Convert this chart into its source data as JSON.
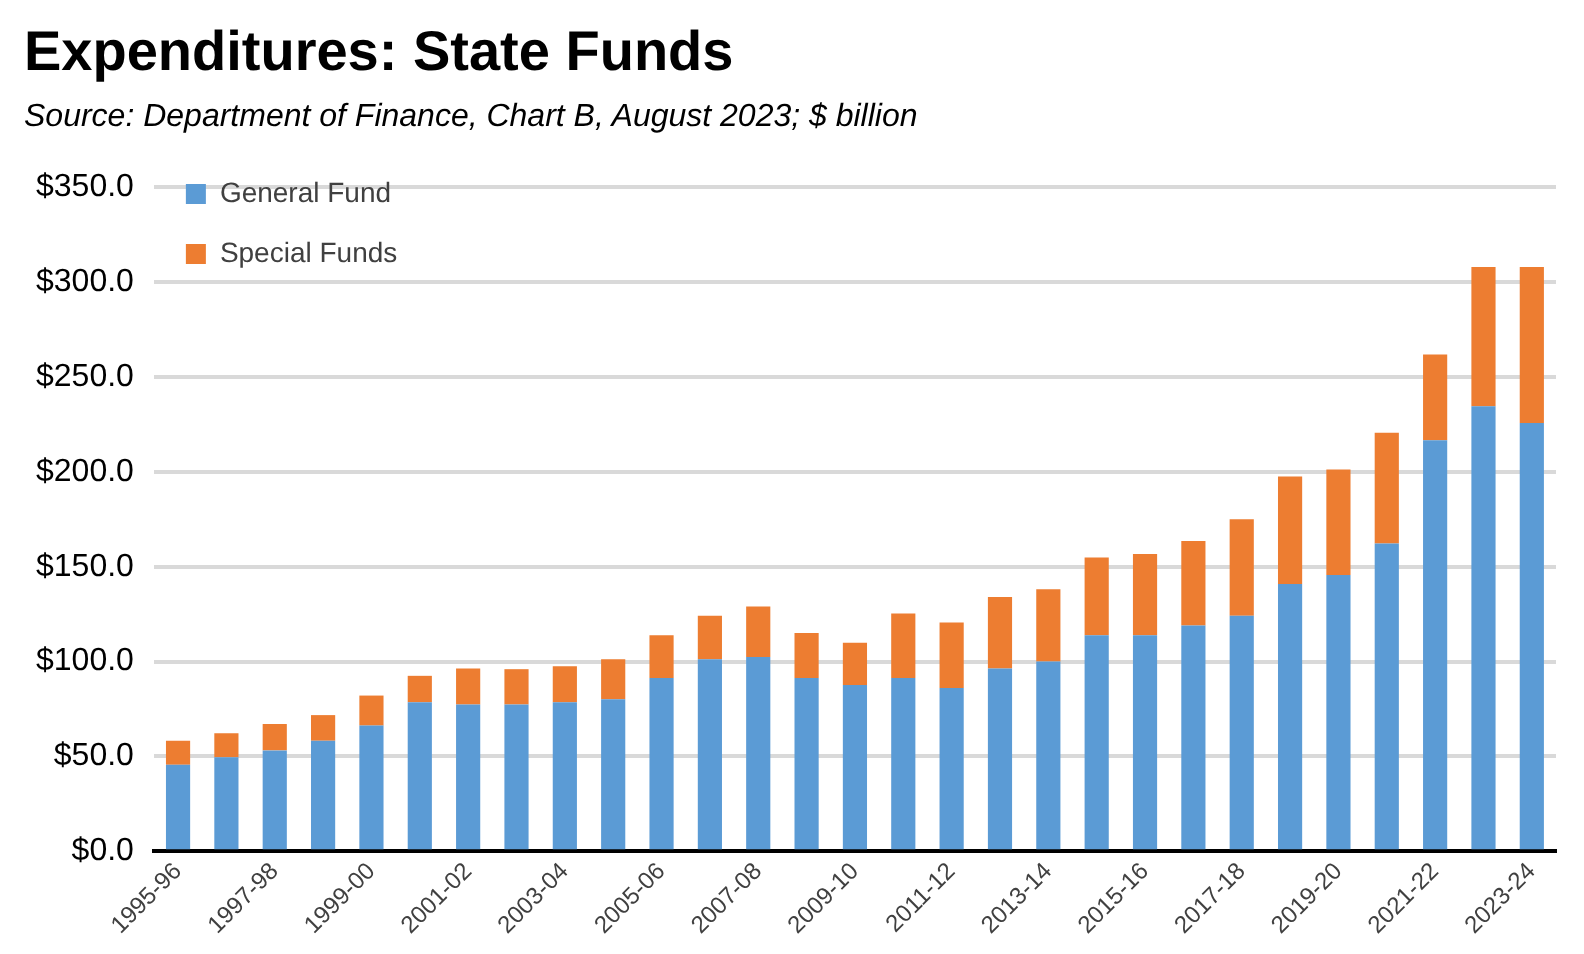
{
  "chart_data": {
    "type": "bar",
    "title": "Expenditures:  State Funds",
    "subtitle": "Source:  Department of Finance, Chart B, August 2023; $ billion",
    "categories": [
      "1995-96",
      null,
      "1997-98",
      null,
      "1999-00",
      null,
      "2001-02",
      null,
      "2003-04",
      null,
      "2005-06",
      null,
      "2007-08",
      null,
      "2009-10",
      null,
      "2011-12",
      null,
      "2013-14",
      null,
      "2015-16",
      null,
      "2017-18",
      null,
      "2019-20",
      null,
      "2021-22",
      null,
      "2023-24"
    ],
    "stacked": true,
    "series": [
      {
        "name": "General Fund",
        "color": "#5b9bd5",
        "values": [
          45.6,
          49.6,
          53.2,
          58.3,
          66.3,
          78.6,
          77.4,
          77.4,
          78.6,
          80.2,
          91.3,
          101.2,
          102.4,
          91.3,
          87.7,
          91.3,
          86.1,
          96.4,
          100.0,
          113.9,
          113.9,
          119.0,
          124.2,
          140.9,
          145.6,
          162.3,
          216.7,
          234.5,
          225.8
        ]
      },
      {
        "name": "Special Funds",
        "color": "#ed7d31",
        "values": [
          12.7,
          12.7,
          13.9,
          13.5,
          15.8,
          13.9,
          19.0,
          18.6,
          19.0,
          21.0,
          22.6,
          23.0,
          26.6,
          23.8,
          22.2,
          34.1,
          34.5,
          37.7,
          38.1,
          40.9,
          42.8,
          44.5,
          50.8,
          56.7,
          55.6,
          58.3,
          45.2,
          73.4,
          82.1
        ]
      }
    ],
    "ylim": [
      0,
      350
    ],
    "yticks": [
      {
        "value": 0,
        "label": "$0.0"
      },
      {
        "value": 50,
        "label": "$50.0"
      },
      {
        "value": 100,
        "label": "$100.0"
      },
      {
        "value": 150,
        "label": "$150.0"
      },
      {
        "value": 200,
        "label": "$200.0"
      },
      {
        "value": 250,
        "label": "$250.0"
      },
      {
        "value": 300,
        "label": "$300.0"
      },
      {
        "value": 350,
        "label": "$350.0"
      }
    ],
    "grid": "y",
    "legend": "top left"
  }
}
